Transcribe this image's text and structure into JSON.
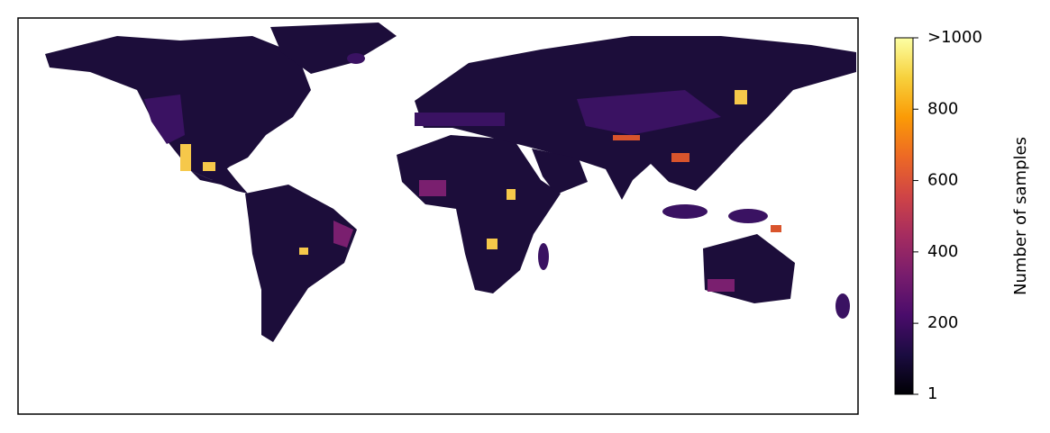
{
  "map": {
    "colorbar": {
      "label": "Number of samples",
      "lim": [
        1,
        1000
      ],
      "ticks": [
        1,
        200,
        400,
        600,
        800,
        {
          "value": 1000,
          "label": ">1000"
        }
      ],
      "colormap": "inferno"
    }
  }
}
